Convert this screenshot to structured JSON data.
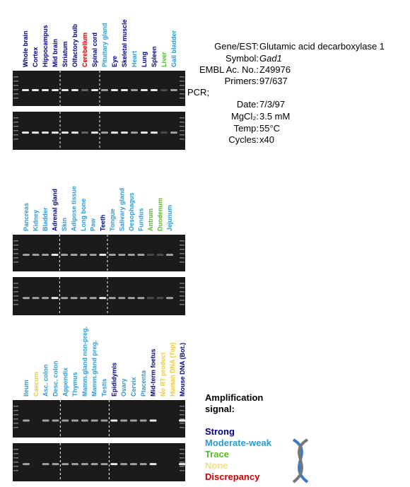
{
  "panels": [
    {
      "lanes": [
        {
          "label": "Whole brain",
          "color": "#000080"
        },
        {
          "label": "Cortex",
          "color": "#000080"
        },
        {
          "label": "Hippocampus",
          "color": "#000080"
        },
        {
          "label": "Mid brain",
          "color": "#000080"
        },
        {
          "label": "Striatum",
          "color": "#000080"
        },
        {
          "label": "Olfactory bulb",
          "color": "#000080"
        },
        {
          "label": "Cerebellum",
          "color": "#cc0000"
        },
        {
          "label": "Spinal cord",
          "color": "#000080"
        },
        {
          "label": "Pituitary gland",
          "color": "#2a9ad6"
        },
        {
          "label": "Eye",
          "color": "#000080"
        },
        {
          "label": "Skeletal muscle",
          "color": "#000080"
        },
        {
          "label": "Heart",
          "color": "#2a9ad6"
        },
        {
          "label": "Lung",
          "color": "#000080"
        },
        {
          "label": "Spleen",
          "color": "#000080"
        },
        {
          "label": "Liver",
          "color": "#55bb22"
        },
        {
          "label": "Gall bladder",
          "color": "#2a9ad6"
        }
      ]
    },
    {
      "lanes": [
        {
          "label": "Pancreas",
          "color": "#2a9ad6"
        },
        {
          "label": "Kidney",
          "color": "#2a9ad6"
        },
        {
          "label": "Bladder",
          "color": "#2a9ad6"
        },
        {
          "label": "Adrenal gland",
          "color": "#000080"
        },
        {
          "label": "Skin",
          "color": "#2a9ad6"
        },
        {
          "label": "Adipose tissue",
          "color": "#2a9ad6"
        },
        {
          "label": "Long bone",
          "color": "#2a9ad6"
        },
        {
          "label": "Paw",
          "color": "#2a9ad6"
        },
        {
          "label": "Teeth",
          "color": "#000080"
        },
        {
          "label": "Tongue",
          "color": "#2a9ad6"
        },
        {
          "label": "Salivary gland",
          "color": "#2a9ad6"
        },
        {
          "label": "Oesophagus",
          "color": "#2a9ad6"
        },
        {
          "label": "Fundus",
          "color": "#2a9ad6"
        },
        {
          "label": "Antrum",
          "color": "#55bb22"
        },
        {
          "label": "Duodenum",
          "color": "#55bb22"
        },
        {
          "label": "Jejunum",
          "color": "#2a9ad6"
        }
      ]
    },
    {
      "lanes": [
        {
          "label": "Ileum",
          "color": "#2a9ad6"
        },
        {
          "label": "Caecum",
          "color": "#f0c830"
        },
        {
          "label": "Asc. colon",
          "color": "#2a9ad6"
        },
        {
          "label": "Desc. colon",
          "color": "#2a9ad6"
        },
        {
          "label": "Appendix",
          "color": "#2a9ad6"
        },
        {
          "label": "Thymus",
          "color": "#2a9ad6"
        },
        {
          "label": "Mamm.gland non-preg.",
          "color": "#2a9ad6"
        },
        {
          "label": "Mamm.gland preg.",
          "color": "#2a9ad6"
        },
        {
          "label": "Testis",
          "color": "#2a9ad6"
        },
        {
          "label": "Epididymis",
          "color": "#000080"
        },
        {
          "label": "Ovary",
          "color": "#2a9ad6"
        },
        {
          "label": "Cervix",
          "color": "#2a9ad6"
        },
        {
          "label": "Placenta",
          "color": "#2a9ad6"
        },
        {
          "label": "Mid-term foetus",
          "color": "#000080"
        },
        {
          "label": "No RT product",
          "color": "#f0c830"
        },
        {
          "label": "Human DNA (Top)",
          "color": "#f0c830"
        },
        {
          "label": "Mouse DNA (Bot.)",
          "color": "#000080"
        }
      ]
    }
  ],
  "info": {
    "rows": [
      {
        "label": "Gene/EST:",
        "value": "Glutamic acid decarboxylase 1"
      },
      {
        "label": "Symbol:",
        "value": "Gad1"
      },
      {
        "label": "EMBL Ac. No.:",
        "value": "Z49976"
      },
      {
        "label": "Primers:",
        "value": "97/637"
      },
      {
        "label": "PCR;"
      },
      {
        "label": "Date:",
        "value": "7/3/97"
      },
      {
        "label": "MgCl₂:",
        "value": "3.5 mM"
      },
      {
        "label": "Temp:",
        "value": "55°C"
      },
      {
        "label": "Cycles:",
        "value": "x40"
      }
    ]
  },
  "legend": {
    "title_lines": [
      "Amplification",
      "signal:"
    ],
    "items": [
      {
        "label": "Strong",
        "color": "#000080"
      },
      {
        "label": "Moderate-weak",
        "color": "#2a9ad6"
      },
      {
        "label": "Trace",
        "color": "#55bb22"
      },
      {
        "label": "None",
        "color": "#f0e080"
      },
      {
        "label": "Discrepancy",
        "color": "#cc0000"
      }
    ]
  }
}
